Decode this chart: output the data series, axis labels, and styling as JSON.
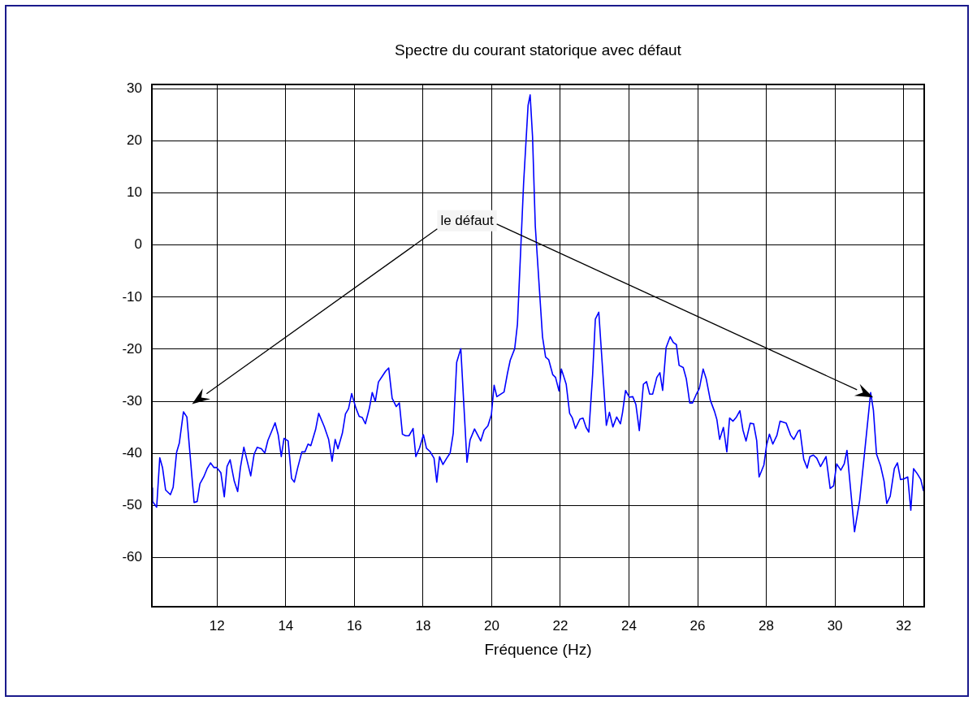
{
  "chart_data": {
    "type": "line",
    "title": "Spectre du courant statorique avec défaut",
    "xlabel": "Fréquence (Hz)",
    "annotations": [
      "le défaut"
    ],
    "xlim": [
      10.1,
      32.6
    ],
    "ylim": [
      -69.4,
      30.8
    ],
    "xticks": [
      12,
      14,
      16,
      18,
      20,
      22,
      24,
      26,
      28,
      30,
      32
    ],
    "yticks": [
      -60,
      -50,
      -40,
      -30,
      -20,
      -10,
      0,
      10,
      20,
      30
    ],
    "grid": true,
    "series": [
      {
        "color": "#0000ff",
        "x": [
          10.1,
          10.12,
          10.24,
          10.33,
          10.41,
          10.5,
          10.64,
          10.72,
          10.82,
          10.9,
          11.02,
          11.12,
          11.33,
          11.42,
          11.5,
          11.61,
          11.71,
          11.81,
          11.91,
          11.99,
          12.11,
          12.21,
          12.29,
          12.38,
          12.5,
          12.6,
          12.68,
          12.78,
          12.98,
          13.08,
          13.17,
          13.29,
          13.39,
          13.48,
          13.58,
          13.69,
          13.78,
          13.87,
          13.95,
          14.07,
          14.17,
          14.25,
          14.35,
          14.47,
          14.56,
          14.65,
          14.73,
          14.87,
          14.96,
          15.12,
          15.25,
          15.35,
          15.44,
          15.52,
          15.65,
          15.74,
          15.83,
          15.92,
          16.04,
          16.14,
          16.23,
          16.32,
          16.44,
          16.52,
          16.61,
          16.7,
          16.82,
          16.91,
          17.0,
          17.1,
          17.22,
          17.31,
          17.4,
          17.49,
          17.59,
          17.71,
          17.79,
          17.9,
          18.01,
          18.1,
          18.2,
          18.32,
          18.4,
          18.48,
          18.58,
          18.69,
          18.79,
          18.88,
          18.98,
          19.1,
          19.28,
          19.37,
          19.5,
          19.68,
          19.78,
          19.89,
          19.99,
          20.07,
          20.15,
          20.36,
          20.46,
          20.54,
          20.67,
          20.75,
          20.93,
          21.06,
          21.12,
          21.19,
          21.27,
          21.48,
          21.57,
          21.66,
          21.78,
          21.86,
          21.96,
          22.03,
          22.17,
          22.27,
          22.35,
          22.44,
          22.57,
          22.66,
          22.75,
          22.83,
          22.94,
          23.02,
          23.12,
          23.34,
          23.43,
          23.53,
          23.64,
          23.75,
          23.81,
          23.9,
          24.01,
          24.11,
          24.2,
          24.3,
          24.42,
          24.51,
          24.6,
          24.69,
          24.81,
          24.9,
          24.98,
          25.08,
          25.2,
          25.29,
          25.38,
          25.46,
          25.58,
          25.67,
          25.77,
          25.85,
          25.95,
          26.05,
          26.16,
          26.25,
          26.37,
          26.49,
          26.56,
          26.64,
          26.75,
          26.85,
          26.93,
          27.03,
          27.13,
          27.23,
          27.32,
          27.41,
          27.53,
          27.63,
          27.72,
          27.79,
          27.93,
          28.01,
          28.09,
          28.19,
          28.31,
          28.4,
          28.58,
          28.71,
          28.8,
          28.93,
          28.98,
          29.09,
          29.19,
          29.27,
          29.37,
          29.47,
          29.58,
          29.74,
          29.86,
          29.96,
          30.05,
          30.17,
          30.27,
          30.35,
          30.57,
          30.72,
          30.86,
          31.04,
          31.12,
          31.21,
          31.33,
          31.43,
          31.51,
          31.61,
          31.73,
          31.82,
          31.91,
          32.0,
          32.12,
          32.21,
          32.29,
          32.4,
          32.5,
          32.58
        ],
        "values": [
          -46.6,
          -49.2,
          -50.3,
          -40.8,
          -42.7,
          -47.0,
          -47.9,
          -46.5,
          -39.8,
          -38.0,
          -32.0,
          -33.0,
          -49.4,
          -49.2,
          -45.8,
          -44.5,
          -42.9,
          -41.8,
          -42.7,
          -42.7,
          -43.7,
          -48.3,
          -42.5,
          -41.2,
          -45.3,
          -47.3,
          -42.7,
          -38.8,
          -44.3,
          -40.1,
          -38.8,
          -39.1,
          -39.9,
          -37.5,
          -35.9,
          -34.1,
          -36.4,
          -40.6,
          -37.1,
          -37.6,
          -44.8,
          -45.5,
          -42.7,
          -39.7,
          -39.7,
          -38.2,
          -38.5,
          -35.4,
          -32.3,
          -34.8,
          -37.3,
          -41.5,
          -37.3,
          -39.1,
          -36.1,
          -32.4,
          -31.4,
          -28.5,
          -31.2,
          -32.9,
          -33.1,
          -34.3,
          -31.2,
          -28.3,
          -30.0,
          -26.3,
          -25.1,
          -24.2,
          -23.6,
          -29.4,
          -31.0,
          -30.3,
          -36.3,
          -36.6,
          -36.6,
          -35.2,
          -40.6,
          -38.9,
          -36.4,
          -39.0,
          -39.6,
          -40.9,
          -45.5,
          -40.6,
          -42.1,
          -40.9,
          -39.9,
          -36.1,
          -22.5,
          -19.9,
          -41.7,
          -37.4,
          -35.3,
          -37.6,
          -35.5,
          -34.7,
          -32.6,
          -26.9,
          -29.1,
          -28.2,
          -24.6,
          -22.1,
          -19.9,
          -15.2,
          11.9,
          26.8,
          28.8,
          20.8,
          3.6,
          -17.6,
          -21.5,
          -22.0,
          -24.9,
          -25.4,
          -28.0,
          -23.8,
          -26.7,
          -32.3,
          -33.2,
          -35.2,
          -33.4,
          -33.2,
          -35.0,
          -35.9,
          -24.9,
          -14.2,
          -12.9,
          -34.6,
          -32.1,
          -34.9,
          -33.0,
          -34.3,
          -32.2,
          -27.9,
          -29.2,
          -29.1,
          -30.6,
          -35.6,
          -26.7,
          -26.2,
          -28.6,
          -28.6,
          -25.4,
          -24.5,
          -27.9,
          -19.7,
          -17.6,
          -18.7,
          -19.1,
          -23.1,
          -23.5,
          -25.7,
          -30.3,
          -30.3,
          -28.8,
          -27.5,
          -23.8,
          -25.7,
          -29.8,
          -31.9,
          -33.5,
          -37.3,
          -35.0,
          -39.7,
          -33.2,
          -33.8,
          -33.0,
          -31.8,
          -35.5,
          -37.6,
          -34.2,
          -34.3,
          -37.5,
          -44.5,
          -42.2,
          -38.3,
          -36.3,
          -38.2,
          -36.5,
          -33.8,
          -34.2,
          -36.5,
          -37.3,
          -35.7,
          -35.5,
          -41.1,
          -42.8,
          -40.6,
          -40.3,
          -40.9,
          -42.5,
          -40.6,
          -46.7,
          -46.2,
          -42.0,
          -43.2,
          -42.0,
          -39.4,
          -55.0,
          -49.0,
          -40.0,
          -28.3,
          -31.7,
          -40.1,
          -42.4,
          -45.3,
          -49.6,
          -48.2,
          -42.9,
          -41.8,
          -45.0,
          -44.9,
          -44.5,
          -50.9,
          -42.9,
          -43.9,
          -45.0,
          -47.2
        ]
      }
    ]
  }
}
